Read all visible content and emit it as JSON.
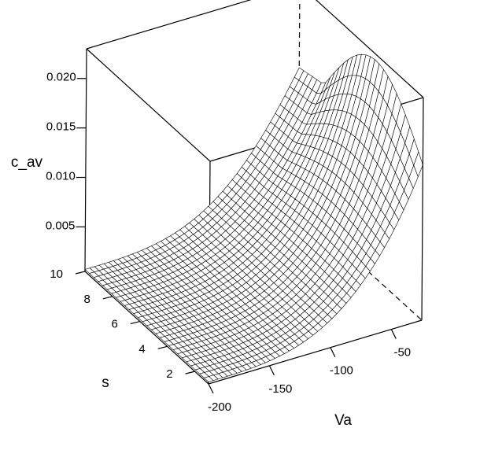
{
  "chart_data": {
    "type": "surface",
    "title": "",
    "xlabel": "Va",
    "ylabel": "s",
    "zlabel": "c_av",
    "xlim": [
      -200,
      -25
    ],
    "ylim": [
      1,
      10
    ],
    "zlim": [
      0.0005,
      0.023
    ],
    "x_ticks": [
      {
        "value": -200,
        "label": "-200"
      },
      {
        "value": -150,
        "label": "-150"
      },
      {
        "value": -100,
        "label": "-100"
      },
      {
        "value": -50,
        "label": "-50"
      }
    ],
    "y_ticks": [
      {
        "value": 2,
        "label": "2"
      },
      {
        "value": 4,
        "label": "4"
      },
      {
        "value": 6,
        "label": "6"
      },
      {
        "value": 8,
        "label": "8"
      },
      {
        "value": 10,
        "label": "10"
      }
    ],
    "z_ticks": [
      {
        "value": 0.005,
        "label": "0.005"
      },
      {
        "value": 0.01,
        "label": "0.010"
      },
      {
        "value": 0.015,
        "label": "0.015"
      },
      {
        "value": 0.02,
        "label": "0.020"
      }
    ],
    "surface": {
      "description_points": [
        {
          "Va": -200,
          "s": 1,
          "c_av": 0.0008
        },
        {
          "Va": -200,
          "s": 10,
          "c_av": 0.0008
        },
        {
          "Va": -100,
          "s": 1,
          "c_av": 0.0035
        },
        {
          "Va": -50,
          "s": 1,
          "c_av": 0.009
        },
        {
          "Va": -25,
          "s": 1,
          "c_av": 0.0165
        },
        {
          "Va": -25,
          "s": 5,
          "c_av": 0.022
        },
        {
          "Va": -25,
          "s": 10,
          "c_av": 0.0205
        }
      ],
      "x_count": 45,
      "y_count": 28
    },
    "grid": false,
    "legend": "none"
  }
}
